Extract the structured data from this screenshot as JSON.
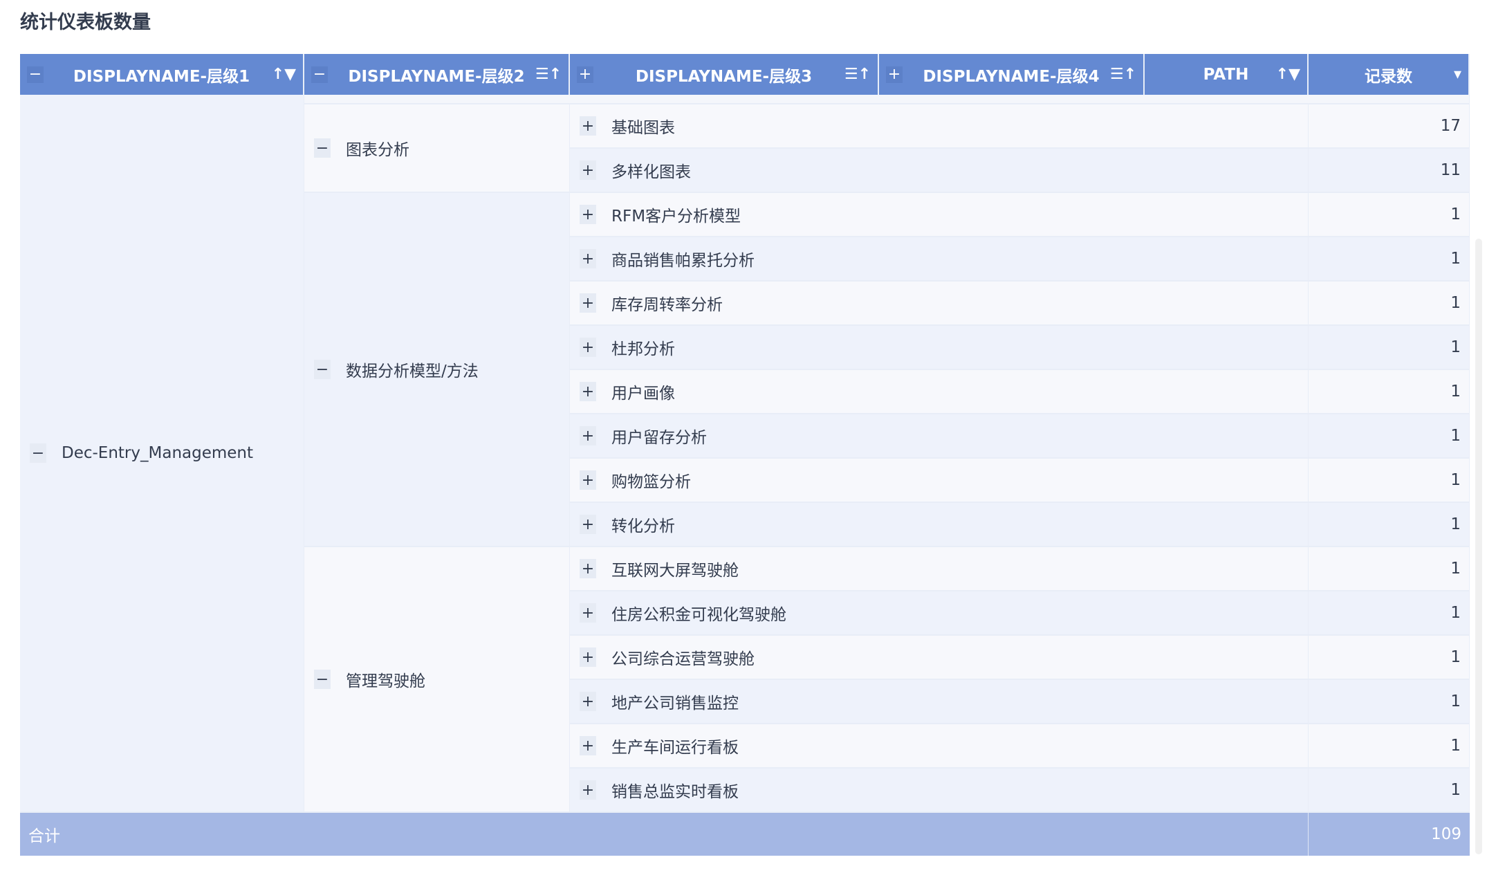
{
  "title": "统计仪表板数量",
  "headers": [
    {
      "label": "DISPLAYNAME-层级1",
      "toggle": "−",
      "sort_icon": "↑▼"
    },
    {
      "label": "DISPLAYNAME-层级2",
      "toggle": "−",
      "sort_icon": "☰↑"
    },
    {
      "label": "DISPLAYNAME-层级3",
      "toggle": "+",
      "sort_icon": "☰↑"
    },
    {
      "label": "DISPLAYNAME-层级4",
      "toggle": "+",
      "sort_icon": "☰↑"
    },
    {
      "label": "PATH",
      "toggle": "",
      "sort_icon": "↑▼"
    },
    {
      "label": "记录数",
      "toggle": "",
      "sort_icon": "▾"
    }
  ],
  "level1": {
    "label": "Dec-Entry_Management",
    "toggle": "−"
  },
  "groups": [
    {
      "label": "图表分析",
      "toggle": "−",
      "rows": [
        {
          "name": "基础图表",
          "count": "17"
        },
        {
          "name": "多样化图表",
          "count": "11"
        }
      ]
    },
    {
      "label": "数据分析模型/方法",
      "toggle": "−",
      "rows": [
        {
          "name": "RFM客户分析模型",
          "count": "1"
        },
        {
          "name": "商品销售帕累托分析",
          "count": "1"
        },
        {
          "name": "库存周转率分析",
          "count": "1"
        },
        {
          "name": "杜邦分析",
          "count": "1"
        },
        {
          "name": "用户画像",
          "count": "1"
        },
        {
          "name": "用户留存分析",
          "count": "1"
        },
        {
          "name": "购物篮分析",
          "count": "1"
        },
        {
          "name": "转化分析",
          "count": "1"
        }
      ]
    },
    {
      "label": "管理驾驶舱",
      "toggle": "−",
      "rows": [
        {
          "name": "互联网大屏驾驶舱",
          "count": "1"
        },
        {
          "name": "住房公积金可视化驾驶舱",
          "count": "1"
        },
        {
          "name": "公司综合运营驾驶舱",
          "count": "1"
        },
        {
          "name": "地产公司销售监控",
          "count": "1"
        },
        {
          "name": "生产车间运行看板",
          "count": "1"
        },
        {
          "name": "销售总监实时看板",
          "count": "1"
        }
      ]
    }
  ],
  "row_toggle": "+",
  "total": {
    "label": "合计",
    "value": "109"
  }
}
